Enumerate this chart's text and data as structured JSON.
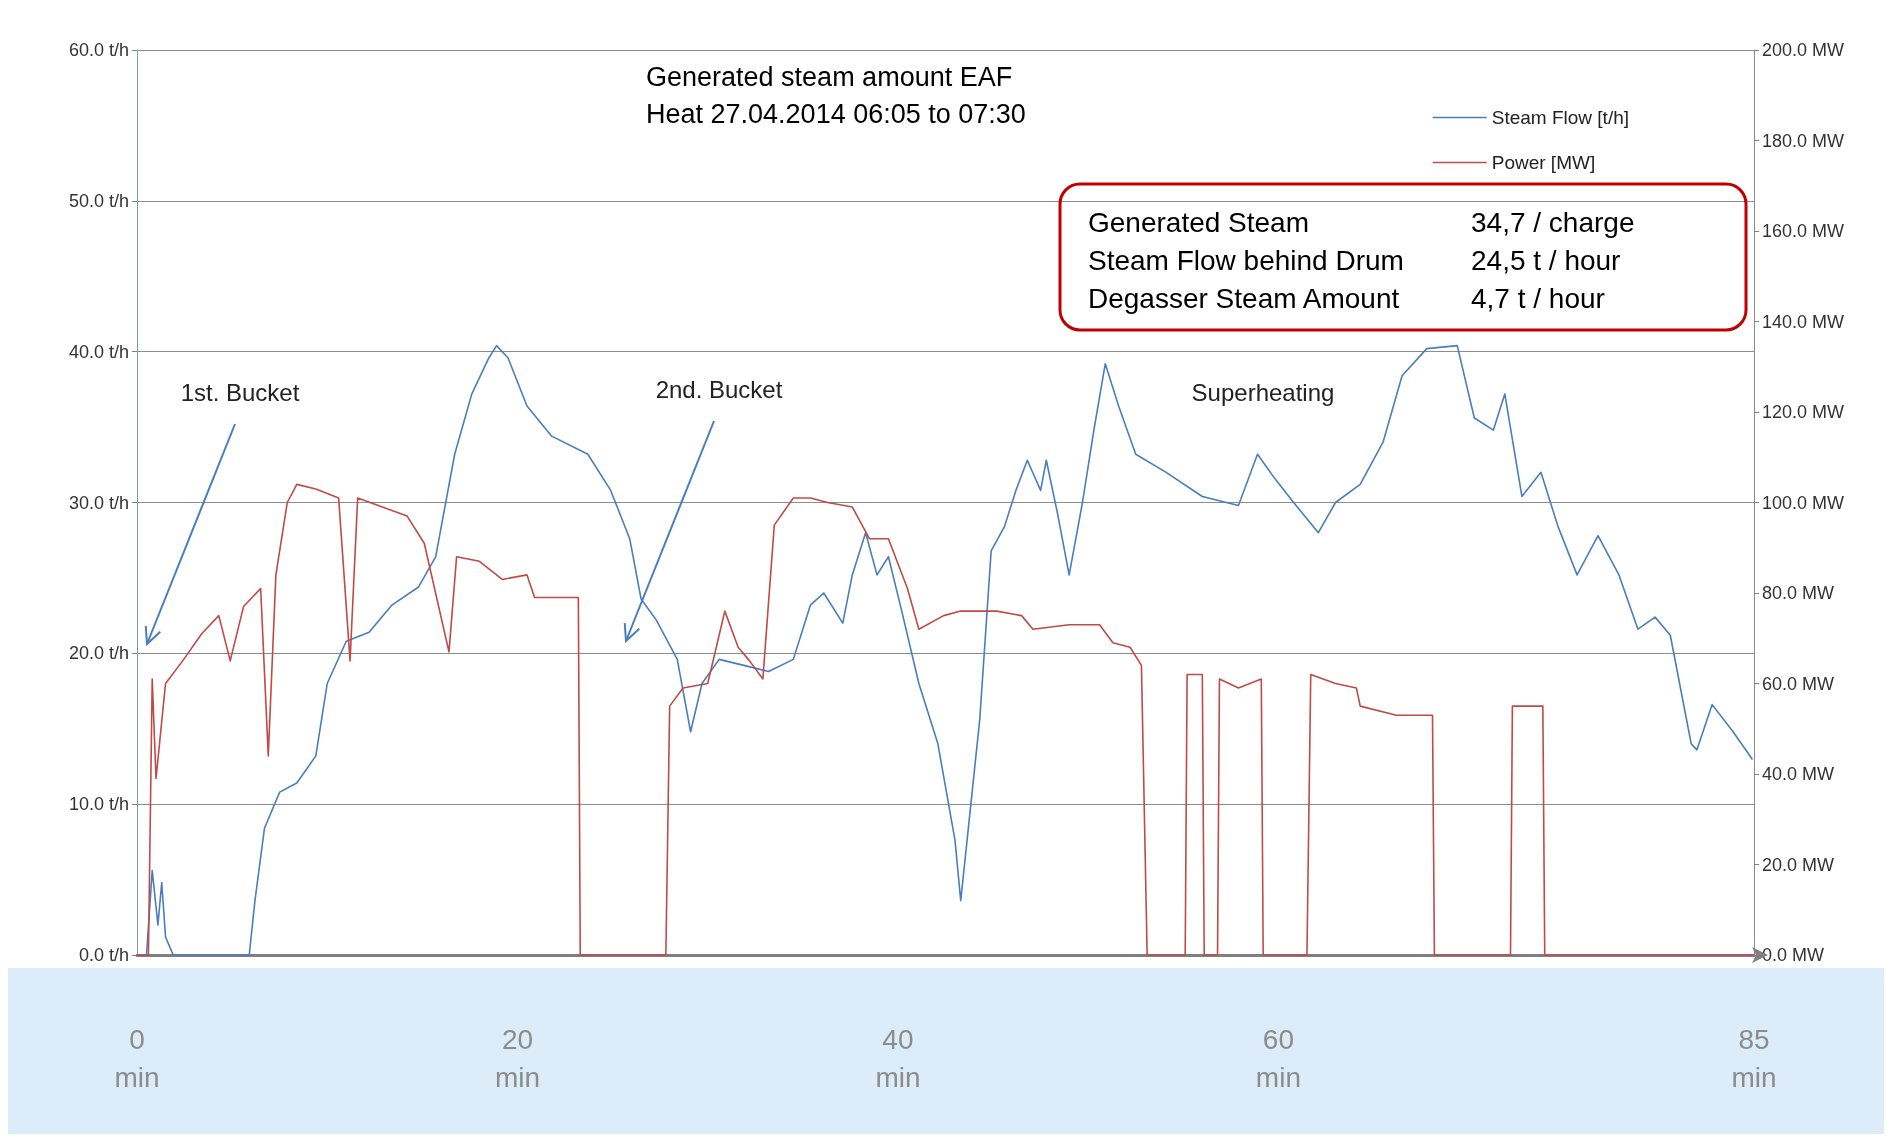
{
  "chart_data": {
    "type": "line",
    "title": "Generated steam amount EAF",
    "subtitle": "Heat 27.04.2014 06:05 to 07:30",
    "xlim": [
      0,
      85
    ],
    "xticks": [
      {
        "value": 0,
        "label": "0\nmin"
      },
      {
        "value": 20,
        "label": "20\nmin"
      },
      {
        "value": 40,
        "label": "40\nmin"
      },
      {
        "value": 60,
        "label": "60\nmin"
      },
      {
        "value": 85,
        "label": "85\nmin"
      }
    ],
    "ylim": [
      0,
      60
    ],
    "yticks": [
      {
        "value": 0,
        "label": "0.0 t/h"
      },
      {
        "value": 10,
        "label": "10.0 t/h"
      },
      {
        "value": 20,
        "label": "20.0 t/h"
      },
      {
        "value": 30,
        "label": "30.0 t/h"
      },
      {
        "value": 40,
        "label": "40.0 t/h"
      },
      {
        "value": 50,
        "label": "50.0 t/h"
      },
      {
        "value": 60,
        "label": "60.0 t/h"
      }
    ],
    "y2lim": [
      0,
      200
    ],
    "y2ticks": [
      {
        "value": 0,
        "label": "0.0 MW"
      },
      {
        "value": 20,
        "label": "20.0 MW"
      },
      {
        "value": 40,
        "label": "40.0 MW"
      },
      {
        "value": 60,
        "label": "60.0 MW"
      },
      {
        "value": 80,
        "label": "80.0 MW"
      },
      {
        "value": 100,
        "label": "100.0 MW"
      },
      {
        "value": 120,
        "label": "120.0 MW"
      },
      {
        "value": 140,
        "label": "140.0 MW"
      },
      {
        "value": 160,
        "label": "160.0 MW"
      },
      {
        "value": 180,
        "label": "180.0 MW"
      },
      {
        "value": 200,
        "label": "200.0 MW"
      }
    ],
    "grid": "y",
    "legend": "top right",
    "series": [
      {
        "name": "Steam Flow [t/h]",
        "color": "#4a7ebb",
        "x": [
          0,
          0.5,
          0.8,
          1.1,
          1.3,
          1.5,
          1.9,
          5.9,
          6.2,
          6.7,
          7.5,
          8.4,
          9.4,
          10.0,
          11.0,
          12.2,
          13.4,
          14.8,
          15.7,
          16.7,
          17.6,
          18.5,
          18.9,
          19.5,
          20.5,
          21.8,
          23.7,
          24.9,
          25.9,
          26.5,
          27.3,
          28.4,
          29.1,
          29.7,
          30.6,
          31.9,
          33.2,
          34.5,
          35.4,
          36.1,
          37.1,
          37.6,
          38.3,
          38.9,
          39.5,
          40.2,
          41.1,
          42.1,
          43.0,
          43.3,
          43.7,
          44.3,
          44.9,
          45.6,
          46.2,
          46.8,
          47.5,
          47.8,
          48.4,
          49.0,
          49.7,
          50.3,
          50.9,
          51.6,
          52.5,
          54.1,
          56.0,
          57.9,
          58.9,
          59.8,
          60.8,
          62.1,
          63.0,
          64.3,
          65.5,
          66.5,
          67.8,
          69.4,
          70.3,
          71.3,
          71.9,
          72.8,
          73.8,
          74.7,
          75.7,
          76.8,
          77.9,
          78.9,
          79.8,
          80.6,
          81.7,
          82.0,
          82.8,
          83.9,
          84.9
        ],
        "values": [
          0,
          0,
          5.6,
          2,
          4.8,
          1.2,
          0,
          0,
          3.6,
          8.4,
          10.8,
          11.4,
          13.2,
          18,
          20.8,
          21.4,
          23.2,
          24.4,
          26.4,
          33.2,
          37.2,
          39.6,
          40.4,
          39.6,
          36.4,
          34.4,
          33.2,
          30.8,
          27.6,
          23.6,
          22.2,
          19.6,
          14.8,
          18,
          19.6,
          19.2,
          18.8,
          19.6,
          23.2,
          24,
          22,
          25.2,
          28,
          25.2,
          26.4,
          22.8,
          18,
          14,
          7.6,
          3.6,
          8.4,
          15.6,
          26.8,
          28.4,
          30.8,
          32.8,
          30.8,
          32.8,
          29.2,
          25.2,
          30,
          34.8,
          39.2,
          36.4,
          33.2,
          32,
          30.4,
          29.8,
          33.2,
          31.6,
          30,
          28,
          30,
          31.2,
          34,
          38.4,
          40.2,
          40.4,
          35.6,
          34.8,
          37.2,
          30.4,
          32,
          28.4,
          25.2,
          27.8,
          25.2,
          21.6,
          22.4,
          21.2,
          14,
          13.6,
          16.6,
          14.8,
          13
        ]
      },
      {
        "name": "Power [MW]",
        "color": "#be4b48",
        "axis": "y2",
        "x": [
          0,
          0.6,
          0.8,
          1.0,
          1.5,
          2.4,
          3.4,
          4.3,
          4.9,
          5.6,
          6.5,
          6.9,
          7.3,
          7.9,
          8.4,
          9.4,
          10.6,
          11.2,
          11.6,
          12.9,
          14.2,
          15.1,
          16.4,
          16.8,
          18.0,
          19.2,
          20.5,
          20.9,
          22.1,
          23.2,
          23.3,
          27.8,
          28.0,
          28.7,
          30.0,
          30.9,
          31.6,
          32.2,
          32.9,
          33.5,
          34.5,
          35.4,
          36.3,
          37.6,
          38.5,
          39.5,
          40.5,
          41.1,
          42.4,
          43.3,
          45.2,
          46.5,
          47.1,
          49.0,
          50.6,
          51.3,
          52.2,
          52.8,
          53.1,
          55.1,
          55.2,
          56.0,
          56.1,
          56.8,
          56.9,
          57.9,
          59.1,
          59.2,
          61.5,
          61.7,
          63.0,
          64.1,
          64.3,
          66.2,
          68.1,
          68.2,
          72.2,
          72.3,
          73.9,
          74.0,
          85
        ],
        "values": [
          0,
          0,
          61,
          39,
          60,
          65,
          71,
          75,
          65,
          77,
          81,
          44,
          84,
          100,
          104,
          103,
          101,
          65,
          101,
          99,
          97,
          91,
          67,
          88,
          87,
          83,
          84,
          79,
          79,
          79,
          0,
          0,
          55,
          59,
          60,
          76,
          68,
          65,
          61,
          95,
          101,
          101,
          100,
          99,
          92,
          92,
          81,
          72,
          75,
          76,
          76,
          75,
          72,
          73,
          73,
          69,
          68,
          64,
          0,
          0,
          62,
          62,
          0,
          0,
          61,
          59,
          61,
          0,
          0,
          62,
          60,
          59,
          55,
          53,
          53,
          0,
          0,
          55,
          55,
          0,
          0
        ]
      }
    ],
    "annotations": [
      "1st. Bucket",
      "2nd. Bucket",
      "Superheating",
      "Generated Steam",
      "34,7 / charge",
      "Steam Flow behind Drum",
      "24,5 t / hour",
      "Degasser Steam Amount",
      "4,7 t / hour"
    ]
  }
}
